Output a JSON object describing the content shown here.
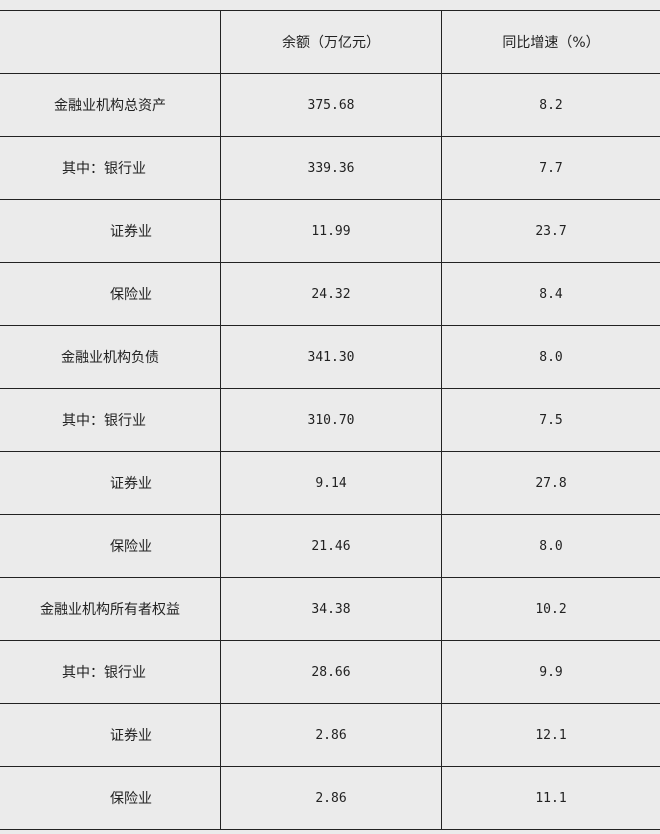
{
  "table": {
    "headers": [
      "",
      "余额（万亿元）",
      "同比增速（%）"
    ],
    "rows": [
      {
        "label": "金融业机构总资产",
        "level": "main",
        "amount": "375.68",
        "growth": "8.2"
      },
      {
        "label": "其中：银行业",
        "level": "sub1",
        "amount": "339.36",
        "growth": "7.7"
      },
      {
        "label": "证券业",
        "level": "sub2",
        "amount": "11.99",
        "growth": "23.7"
      },
      {
        "label": "保险业",
        "level": "sub2",
        "amount": "24.32",
        "growth": "8.4"
      },
      {
        "label": "金融业机构负债",
        "level": "main",
        "amount": "341.30",
        "growth": "8.0"
      },
      {
        "label": "其中：银行业",
        "level": "sub1",
        "amount": "310.70",
        "growth": "7.5"
      },
      {
        "label": "证券业",
        "level": "sub2",
        "amount": "9.14",
        "growth": "27.8"
      },
      {
        "label": "保险业",
        "level": "sub2",
        "amount": "21.46",
        "growth": "8.0"
      },
      {
        "label": "金融业机构所有者权益",
        "level": "main",
        "amount": "34.38",
        "growth": "10.2"
      },
      {
        "label": "其中：银行业",
        "level": "sub1",
        "amount": "28.66",
        "growth": "9.9"
      },
      {
        "label": "证券业",
        "level": "sub2",
        "amount": "2.86",
        "growth": "12.1"
      },
      {
        "label": "保险业",
        "level": "sub2",
        "amount": "2.86",
        "growth": "11.1"
      }
    ]
  }
}
